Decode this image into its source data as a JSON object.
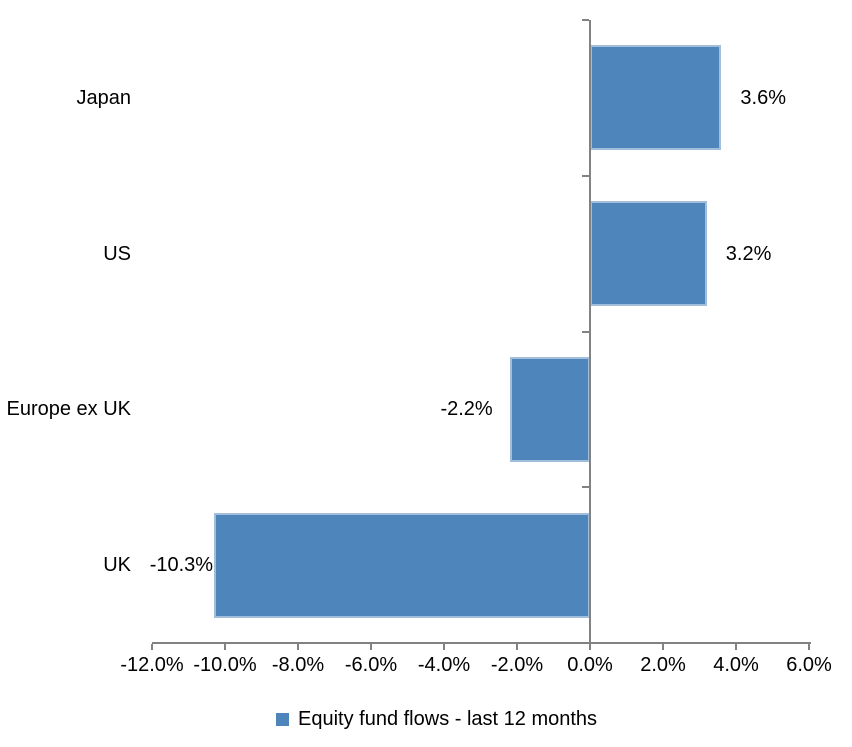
{
  "chart_data": {
    "type": "bar",
    "orientation": "horizontal",
    "title": "",
    "categories": [
      "Japan",
      "US",
      "Europe ex UK",
      "UK"
    ],
    "series": [
      {
        "name": "Equity fund flows - last 12 months",
        "values": [
          3.6,
          3.2,
          -2.2,
          -10.3
        ],
        "value_labels": [
          "3.6%",
          "3.2%",
          "-2.2%",
          "-10.3%"
        ],
        "color": "#4e86bc"
      }
    ],
    "xlabel": "",
    "ylabel": "",
    "xlim": [
      -12,
      6
    ],
    "x_tick_labels": [
      "-12.0%",
      "-10.0%",
      "-8.0%",
      "-6.0%",
      "-4.0%",
      "-2.0%",
      "0.0%",
      "2.0%",
      "4.0%",
      "6.0%"
    ],
    "grid": false,
    "legend_position": "bottom-center",
    "colors": {
      "bar_fill": "#4e86bc",
      "bar_border": "#a2bedb",
      "axis": "#828282",
      "text": "#000000",
      "background": "#ffffff"
    }
  }
}
